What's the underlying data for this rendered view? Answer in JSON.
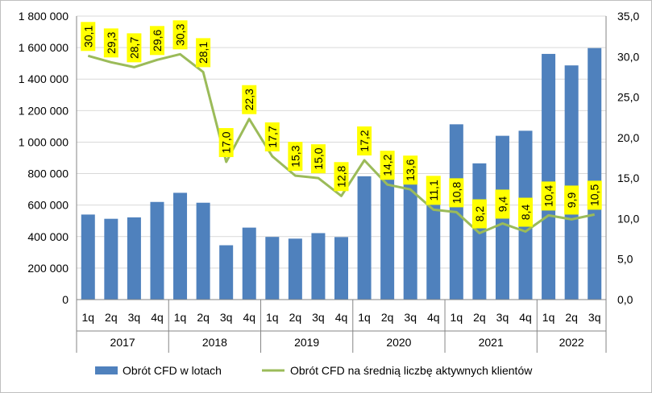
{
  "chart_data": {
    "type": "bar",
    "title": "",
    "x": {
      "quarters": [
        "1q",
        "2q",
        "3q",
        "4q",
        "1q",
        "2q",
        "3q",
        "4q",
        "1q",
        "2q",
        "3q",
        "4q",
        "1q",
        "2q",
        "3q",
        "4q",
        "1q",
        "2q",
        "3q",
        "4q",
        "1q",
        "2q",
        "3q"
      ],
      "years": [
        {
          "label": "2017",
          "count": 4
        },
        {
          "label": "2018",
          "count": 4
        },
        {
          "label": "2019",
          "count": 4
        },
        {
          "label": "2020",
          "count": 4
        },
        {
          "label": "2021",
          "count": 4
        },
        {
          "label": "2022",
          "count": 3
        }
      ]
    },
    "y_left": {
      "ylim": [
        0,
        1800000
      ],
      "ticks": [
        "0",
        "200 000",
        "400 000",
        "600 000",
        "800 000",
        "1 000 000",
        "1 200 000",
        "1 400 000",
        "1 600 000",
        "1 800 000"
      ]
    },
    "y_right": {
      "ylim": [
        0,
        35
      ],
      "ticks": [
        "0,0",
        "5,0",
        "10,0",
        "15,0",
        "20,0",
        "25,0",
        "30,0",
        "35,0"
      ]
    },
    "series": [
      {
        "name": "Obrót CFD w lotach",
        "type": "bar",
        "axis": "left",
        "color": "#4f81bd",
        "values": [
          540000,
          513000,
          522000,
          620000,
          678000,
          615000,
          345000,
          457000,
          398000,
          387000,
          422000,
          397000,
          783000,
          762000,
          742000,
          705000,
          1113000,
          865000,
          1040000,
          1072000,
          1560000,
          1487000,
          1597000
        ]
      },
      {
        "name": "Obrót CFD na średnią liczbę aktywnych klientów",
        "type": "line",
        "axis": "right",
        "color": "#9bbb59",
        "values": [
          30.1,
          29.3,
          28.7,
          29.6,
          30.3,
          28.1,
          17.0,
          22.3,
          17.7,
          15.3,
          15.0,
          12.8,
          17.2,
          14.2,
          13.6,
          11.1,
          10.8,
          8.2,
          9.4,
          8.4,
          10.4,
          9.9,
          10.5
        ],
        "data_labels": [
          "30,1",
          "29,3",
          "28,7",
          "29,6",
          "30,3",
          "28,1",
          "17,0",
          "22,3",
          "17,7",
          "15,3",
          "15,0",
          "12,8",
          "17,2",
          "14,2",
          "13,6",
          "11,1",
          "10,8",
          "8,2",
          "9,4",
          "8,4",
          "10,4",
          "9,9",
          "10,5"
        ],
        "label_background": "#ffff00"
      }
    ],
    "grid": true,
    "legend_position": "bottom"
  }
}
